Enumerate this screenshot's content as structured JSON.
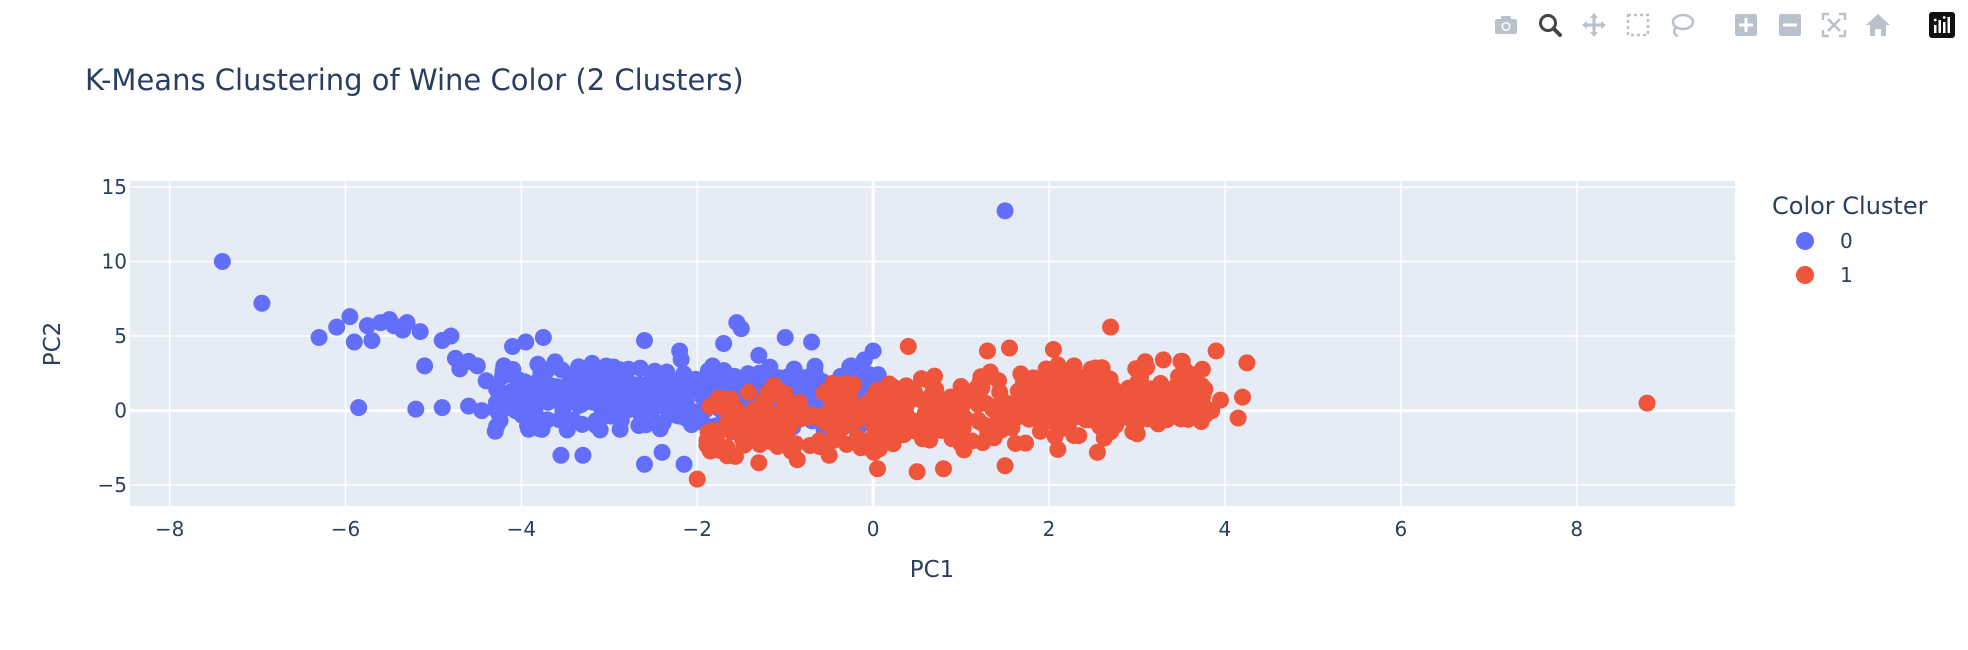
{
  "modebar": {
    "buttons": [
      {
        "icon": "camera-icon",
        "name": "download-plot-button"
      },
      {
        "icon": "zoom-icon",
        "name": "zoom-button",
        "active": true
      },
      {
        "icon": "pan-icon",
        "name": "pan-button"
      },
      {
        "icon": "box-select-icon",
        "name": "box-select-button"
      },
      {
        "icon": "lasso-icon",
        "name": "lasso-select-button"
      },
      {
        "icon": "zoom-in-icon",
        "name": "zoom-in-button"
      },
      {
        "icon": "zoom-out-icon",
        "name": "zoom-out-button"
      },
      {
        "icon": "autoscale-icon",
        "name": "autoscale-button"
      },
      {
        "icon": "home-icon",
        "name": "reset-axes-button"
      },
      {
        "icon": "plotly-logo-icon",
        "name": "plotly-logo-button"
      }
    ]
  },
  "chart_data": {
    "type": "scatter",
    "title": "K-Means Clustering of Wine Color (2 Clusters)",
    "xlabel": "PC1",
    "ylabel": "PC2",
    "xlim": [
      -8.45,
      9.8
    ],
    "ylim": [
      -6.4,
      15.4
    ],
    "xticks": [
      -8,
      -6,
      -4,
      -2,
      0,
      2,
      4,
      6,
      8
    ],
    "yticks": [
      -5,
      0,
      5,
      10,
      15
    ],
    "xtick_labels": [
      "−8",
      "−6",
      "−4",
      "−2",
      "0",
      "2",
      "4",
      "6",
      "8"
    ],
    "ytick_labels": [
      "−5",
      "0",
      "5",
      "10",
      "15"
    ],
    "grid": true,
    "legend": {
      "title": "Color Cluster",
      "placement": "right-top"
    },
    "colors": {
      "plot_bg": "#e5ecf6",
      "cluster_0": "#636efa",
      "cluster_1": "#ef553b",
      "grid": "#ffffff",
      "text": "#2a3f5f"
    },
    "series": [
      {
        "name": "0",
        "color": "#636efa",
        "points": [
          [
            -7.4,
            10.0
          ],
          [
            -6.95,
            7.2
          ],
          [
            -6.3,
            4.9
          ],
          [
            -6.1,
            5.6
          ],
          [
            -5.95,
            6.3
          ],
          [
            -5.9,
            4.6
          ],
          [
            -5.75,
            5.7
          ],
          [
            -5.85,
            0.2
          ],
          [
            -5.7,
            4.7
          ],
          [
            -5.6,
            5.9
          ],
          [
            -5.5,
            6.1
          ],
          [
            -5.45,
            5.7
          ],
          [
            -5.35,
            5.4
          ],
          [
            -5.3,
            5.9
          ],
          [
            -5.15,
            5.3
          ],
          [
            -5.1,
            3.0
          ],
          [
            -5.2,
            0.1
          ],
          [
            -4.9,
            4.7
          ],
          [
            -4.8,
            5.0
          ],
          [
            -4.75,
            3.5
          ],
          [
            -4.7,
            2.8
          ],
          [
            -4.6,
            3.3
          ],
          [
            -4.5,
            3.0
          ],
          [
            -4.4,
            2.0
          ],
          [
            -4.9,
            0.2
          ],
          [
            -4.6,
            0.3
          ],
          [
            -4.45,
            0.0
          ],
          [
            -4.2,
            3.0
          ],
          [
            -4.1,
            4.3
          ],
          [
            -3.95,
            4.6
          ],
          [
            -3.75,
            4.9
          ],
          [
            -3.9,
            0.4
          ],
          [
            -3.85,
            -0.7
          ],
          [
            -3.8,
            -1.2
          ],
          [
            -3.55,
            -3.0
          ],
          [
            -3.3,
            -3.0
          ],
          [
            -2.6,
            -3.6
          ],
          [
            -2.15,
            -3.6
          ],
          [
            -2.4,
            -2.8
          ],
          [
            -1.55,
            5.9
          ],
          [
            -1.5,
            5.5
          ],
          [
            -1.7,
            4.5
          ],
          [
            -1.0,
            4.9
          ],
          [
            -0.7,
            4.6
          ],
          [
            0.0,
            4.0
          ],
          [
            -0.1,
            3.4
          ],
          [
            -1.3,
            3.7
          ],
          [
            -2.2,
            4.0
          ],
          [
            -2.6,
            4.7
          ],
          [
            -0.25,
            3.0
          ],
          [
            1.5,
            13.4
          ]
        ],
        "cloud": {
          "x_range": [
            -4.3,
            0.1
          ],
          "y_center": 0.8,
          "y_spread": 2.8,
          "density": "dense"
        }
      },
      {
        "name": "1",
        "color": "#ef553b",
        "points": [
          [
            -2.0,
            -4.6
          ],
          [
            -1.6,
            -3.0
          ],
          [
            -1.3,
            -3.5
          ],
          [
            -0.5,
            -3.0
          ],
          [
            0.05,
            -3.9
          ],
          [
            0.5,
            -4.1
          ],
          [
            0.8,
            -3.9
          ],
          [
            1.5,
            -3.7
          ],
          [
            2.1,
            -2.6
          ],
          [
            2.55,
            -2.8
          ],
          [
            0.4,
            4.3
          ],
          [
            1.3,
            4.0
          ],
          [
            1.55,
            4.2
          ],
          [
            2.05,
            4.1
          ],
          [
            2.7,
            5.6
          ],
          [
            3.3,
            3.4
          ],
          [
            3.5,
            3.3
          ],
          [
            3.9,
            4.0
          ],
          [
            4.25,
            3.2
          ],
          [
            3.6,
            2.2
          ],
          [
            3.75,
            1.0
          ],
          [
            3.95,
            0.7
          ],
          [
            4.2,
            0.9
          ],
          [
            4.15,
            -0.5
          ],
          [
            3.85,
            0.0
          ],
          [
            3.55,
            -0.5
          ],
          [
            3.4,
            -0.3
          ],
          [
            2.9,
            0.6
          ],
          [
            8.8,
            0.5
          ]
        ],
        "cloud": {
          "x_range": [
            -1.9,
            3.8
          ],
          "y_center": 0.0,
          "y_spread": 3.0,
          "density": "dense"
        }
      }
    ]
  }
}
